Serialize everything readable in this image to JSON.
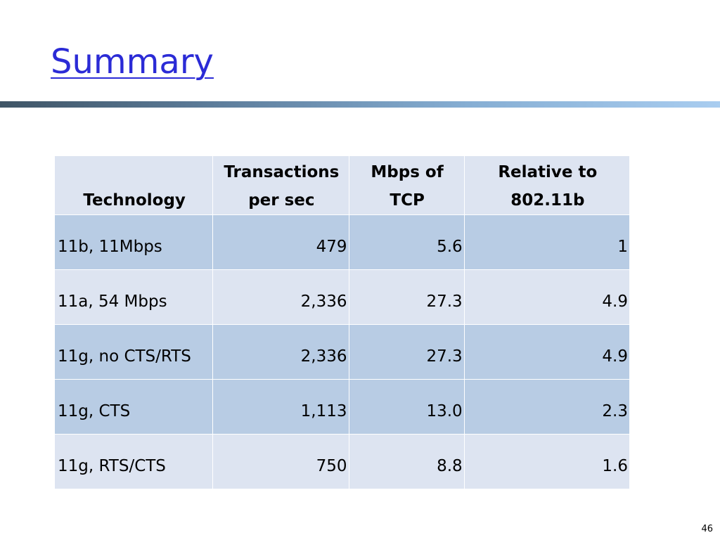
{
  "slide": {
    "title": "Summary",
    "page_number": "46"
  },
  "table": {
    "headers": {
      "technology": "Technology",
      "tps_line1": "Transactions",
      "tps_line2": "per sec",
      "mbps_line1": "Mbps of",
      "mbps_line2": "TCP",
      "rel_line1": "Relative to",
      "rel_line2": "802.11b"
    },
    "rows": [
      {
        "technology": "11b, 11Mbps",
        "tps": "479",
        "mbps": "5.6",
        "relative": "1"
      },
      {
        "technology": "11a, 54 Mbps",
        "tps": "2,336",
        "mbps": "27.3",
        "relative": "4.9"
      },
      {
        "technology": "11g, no CTS/RTS",
        "tps": "2,336",
        "mbps": "27.3",
        "relative": "4.9"
      },
      {
        "technology": "11g, CTS",
        "tps": "1,113",
        "mbps": "13.0",
        "relative": "2.3"
      },
      {
        "technology": "11g, RTS/CTS",
        "tps": "750",
        "mbps": "8.8",
        "relative": "1.6"
      }
    ]
  },
  "colors": {
    "title": "#2b2bd6",
    "row_dark": "#b8cce4",
    "row_light": "#dde4f1"
  }
}
